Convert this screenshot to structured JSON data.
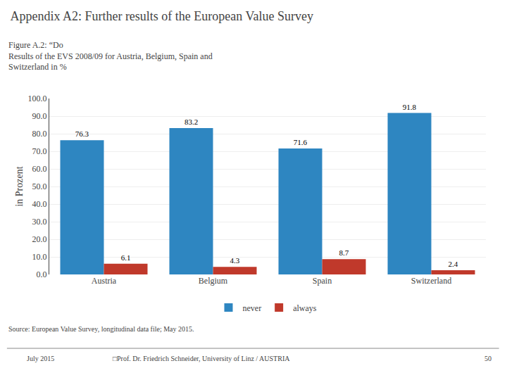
{
  "chart_data": {
    "type": "bar",
    "title": "Appendix A2: Further results of the European Value Survey",
    "subtitle": [
      "Figure A.2: “Do",
      "Results of the EVS 2008/09 for Austria, Belgium, Spain and",
      "Switzerland in %"
    ],
    "categories": [
      "Austria",
      "Belgium",
      "Spain",
      "Switzerland"
    ],
    "series": [
      {
        "name": "never",
        "color": "#2E86C1",
        "values": [
          76.3,
          83.2,
          71.6,
          91.8
        ]
      },
      {
        "name": "always",
        "color": "#C0392B",
        "values": [
          6.1,
          4.3,
          8.7,
          2.4
        ]
      }
    ],
    "ylabel": "in Prozent",
    "ylim": [
      0,
      100
    ],
    "yticks": [
      {
        "value": 0,
        "label": "0.0"
      },
      {
        "value": 10,
        "label": "10.0"
      },
      {
        "value": 20,
        "label": "20.0"
      },
      {
        "value": 30,
        "label": "30.0"
      },
      {
        "value": 40,
        "label": "40.0"
      },
      {
        "value": 50,
        "label": "50.0"
      },
      {
        "value": 60,
        "label": "60.0"
      },
      {
        "value": 70,
        "label": "70.0"
      },
      {
        "value": 80,
        "label": "80.0"
      },
      {
        "value": 90,
        "label": "90.0"
      },
      {
        "value": 100,
        "label": "100.0"
      }
    ],
    "grid": true,
    "legend": "bottom",
    "data_labels": true,
    "annotations": [
      "Source: European Value Survey, longitudinal data file; May 2015.",
      "July 2015",
      "□Prof. Dr. Friedrich Schneider, University of Linz / AUSTRIA",
      "50"
    ]
  }
}
